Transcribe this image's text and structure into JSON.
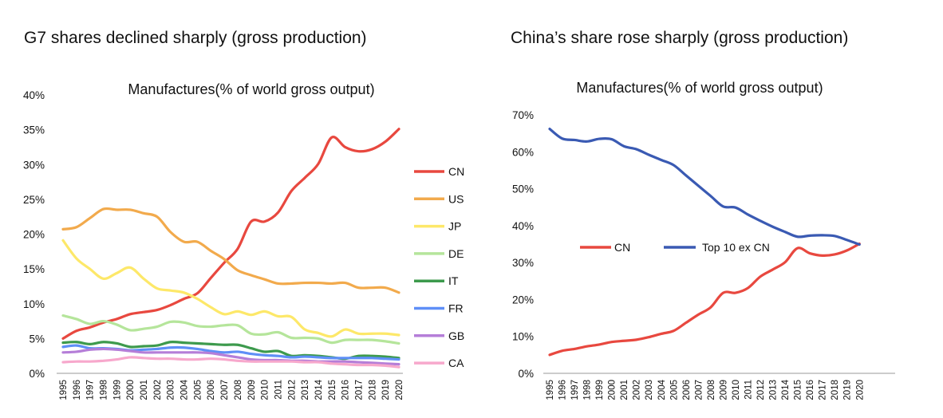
{
  "headings": {
    "left": "G7 shares declined sharply (gross production)",
    "right": "China’s share rose sharply (gross production)"
  },
  "chart_data": [
    {
      "type": "line",
      "title": "Manufactures(% of world gross output)",
      "xlabel": "",
      "ylabel": "",
      "ylim": [
        0,
        40
      ],
      "yticks": [
        "0%",
        "5%",
        "10%",
        "15%",
        "20%",
        "25%",
        "30%",
        "35%",
        "40%"
      ],
      "x": [
        "1995",
        "1996",
        "1997",
        "1998",
        "1999",
        "2000",
        "2001",
        "2002",
        "2003",
        "2004",
        "2005",
        "2006",
        "2007",
        "2008",
        "2009",
        "2010",
        "2011",
        "2012",
        "2013",
        "2014",
        "2015",
        "2016",
        "2017",
        "2018",
        "2019",
        "2020"
      ],
      "legend": "right",
      "grid": false,
      "series": [
        {
          "name": "CN",
          "color": "#e8483f",
          "values": [
            5.0,
            6.1,
            6.6,
            7.3,
            7.8,
            8.5,
            8.8,
            9.1,
            9.8,
            10.7,
            11.5,
            13.7,
            15.9,
            17.9,
            21.8,
            21.8,
            23.1,
            26.2,
            28.1,
            30.1,
            33.9,
            32.5,
            31.9,
            32.2,
            33.3,
            35.1
          ]
        },
        {
          "name": "US",
          "color": "#f2aa4c",
          "values": [
            20.7,
            21.0,
            22.3,
            23.6,
            23.5,
            23.5,
            23.0,
            22.5,
            20.3,
            18.9,
            18.9,
            17.6,
            16.4,
            14.8,
            14.1,
            13.5,
            12.9,
            12.9,
            13.0,
            13.0,
            12.9,
            13.0,
            12.3,
            12.3,
            12.3,
            11.6
          ]
        },
        {
          "name": "JP",
          "color": "#fde869",
          "values": [
            19.1,
            16.5,
            15.0,
            13.6,
            14.4,
            15.2,
            13.6,
            12.2,
            11.9,
            11.6,
            10.7,
            9.5,
            8.5,
            8.9,
            8.4,
            8.9,
            8.2,
            8.1,
            6.3,
            5.8,
            5.3,
            6.3,
            5.7,
            5.7,
            5.7,
            5.5
          ]
        },
        {
          "name": "DE",
          "color": "#b5e59b",
          "values": [
            8.3,
            7.8,
            7.1,
            7.5,
            7.0,
            6.2,
            6.4,
            6.7,
            7.4,
            7.3,
            6.8,
            6.7,
            6.9,
            6.9,
            5.7,
            5.6,
            5.9,
            5.1,
            5.1,
            5.0,
            4.4,
            4.8,
            4.8,
            4.8,
            4.6,
            4.3
          ]
        },
        {
          "name": "IT",
          "color": "#3d9a4d",
          "values": [
            4.4,
            4.5,
            4.2,
            4.5,
            4.3,
            3.8,
            3.9,
            4.0,
            4.5,
            4.4,
            4.3,
            4.2,
            4.1,
            4.1,
            3.6,
            3.1,
            3.2,
            2.5,
            2.6,
            2.5,
            2.3,
            2.1,
            2.5,
            2.5,
            2.4,
            2.2
          ]
        },
        {
          "name": "FR",
          "color": "#5f8ff7",
          "values": [
            3.8,
            4.0,
            3.6,
            3.6,
            3.5,
            3.3,
            3.4,
            3.5,
            3.7,
            3.7,
            3.5,
            3.2,
            3.0,
            3.1,
            2.8,
            2.6,
            2.5,
            2.3,
            2.4,
            2.3,
            2.2,
            2.2,
            2.2,
            2.2,
            2.1,
            2.0
          ]
        },
        {
          "name": "GB",
          "color": "#b57ed8",
          "values": [
            3.0,
            3.1,
            3.4,
            3.5,
            3.4,
            3.2,
            3.0,
            3.0,
            3.0,
            3.0,
            3.0,
            2.9,
            2.6,
            2.3,
            2.0,
            1.9,
            1.9,
            1.8,
            1.8,
            1.7,
            1.7,
            1.7,
            1.6,
            1.5,
            1.4,
            1.3
          ]
        },
        {
          "name": "CA",
          "color": "#f7a8cc",
          "values": [
            1.6,
            1.7,
            1.7,
            1.8,
            2.0,
            2.3,
            2.2,
            2.1,
            2.1,
            2.0,
            2.0,
            2.1,
            2.0,
            1.8,
            1.7,
            1.7,
            1.7,
            1.7,
            1.6,
            1.6,
            1.4,
            1.3,
            1.2,
            1.2,
            1.1,
            0.9
          ]
        }
      ]
    },
    {
      "type": "line",
      "title": "Manufactures(% of world gross output)",
      "xlabel": "",
      "ylabel": "",
      "ylim": [
        0,
        70
      ],
      "yticks": [
        "0%",
        "10%",
        "20%",
        "30%",
        "40%",
        "50%",
        "60%",
        "70%"
      ],
      "x": [
        "1995",
        "1996",
        "1997",
        "1998",
        "1999",
        "2000",
        "2001",
        "2002",
        "2003",
        "2004",
        "2005",
        "2006",
        "2007",
        "2008",
        "2009",
        "2010",
        "2011",
        "2012",
        "2013",
        "2014",
        "2015",
        "2016",
        "2017",
        "2018",
        "2019",
        "2020"
      ],
      "legend": "center-left",
      "grid": false,
      "series": [
        {
          "name": "CN",
          "color": "#e8483f",
          "values": [
            5.0,
            6.1,
            6.6,
            7.3,
            7.8,
            8.5,
            8.8,
            9.1,
            9.8,
            10.7,
            11.5,
            13.7,
            15.9,
            17.9,
            21.8,
            21.8,
            23.1,
            26.2,
            28.1,
            30.1,
            33.9,
            32.5,
            31.9,
            32.2,
            33.3,
            35.1
          ]
        },
        {
          "name": "Top 10 ex CN",
          "color": "#3a5ab3",
          "values": [
            66.2,
            63.6,
            63.2,
            62.8,
            63.5,
            63.4,
            61.5,
            60.7,
            59.2,
            57.8,
            56.4,
            53.6,
            50.8,
            48.0,
            45.2,
            44.9,
            43.0,
            41.3,
            39.7,
            38.3,
            37.0,
            37.3,
            37.4,
            37.2,
            36.1,
            34.9
          ]
        }
      ]
    }
  ]
}
